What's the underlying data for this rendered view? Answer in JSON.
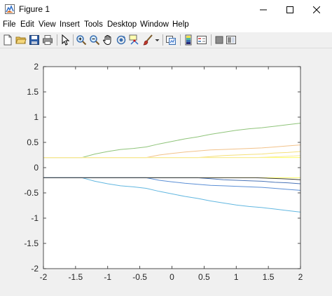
{
  "window": {
    "title": "Figure 1",
    "icon": "matlab-figure-icon",
    "controls": [
      "minimize-icon",
      "maximize-icon",
      "close-icon"
    ]
  },
  "menu": {
    "items": [
      "File",
      "Edit",
      "View",
      "Insert",
      "Tools",
      "Desktop",
      "Window",
      "Help"
    ]
  },
  "toolbar": {
    "tools": [
      "new-figure-icon",
      "open-file-icon",
      "save-icon",
      "print-icon",
      "pointer-icon",
      "zoom-in-icon",
      "zoom-out-icon",
      "pan-hand-icon",
      "rotate-3d-icon",
      "data-cursor-icon",
      "brush-icon",
      "brush-dropdown-icon",
      "link-plot-icon",
      "colorbar-icon",
      "legend-icon",
      "hide-plot-tools-icon",
      "show-plot-tools-icon"
    ]
  },
  "chart_data": {
    "type": "line",
    "title": "",
    "xlabel": "",
    "ylabel": "",
    "xlim": [
      -2,
      2
    ],
    "ylim": [
      -2,
      2
    ],
    "xticks": [
      "-2",
      "-1.5",
      "-1",
      "-0.5",
      "0",
      "0.5",
      "1",
      "1.5",
      "2"
    ],
    "yticks": [
      "-2",
      "-1.5",
      "-1",
      "-0.5",
      "0",
      "0.5",
      "1",
      "1.5",
      "2"
    ],
    "grid": false,
    "series": [
      {
        "color": "#ffff66",
        "x": [
          -2,
          2
        ],
        "y": [
          0.2,
          0.2
        ]
      },
      {
        "color": "#ffff66",
        "x": [
          -2,
          2
        ],
        "y": [
          -0.2,
          -0.2
        ]
      },
      {
        "color": "#8fc47a",
        "x": [
          -2,
          -1.4,
          -1.2,
          -1.0,
          -0.8,
          -0.6,
          -0.4,
          -0.2,
          0.0,
          0.2,
          0.4,
          0.6,
          0.8,
          1.0,
          1.2,
          1.4,
          1.6,
          1.8,
          2.0
        ],
        "y": [
          0.2,
          0.2,
          0.27,
          0.32,
          0.36,
          0.38,
          0.41,
          0.47,
          0.52,
          0.57,
          0.61,
          0.66,
          0.7,
          0.74,
          0.77,
          0.79,
          0.82,
          0.85,
          0.88
        ]
      },
      {
        "color": "#62b7e0",
        "x": [
          -2,
          -1.4,
          -1.2,
          -1.0,
          -0.8,
          -0.6,
          -0.4,
          -0.2,
          0.0,
          0.2,
          0.4,
          0.6,
          0.8,
          1.0,
          1.2,
          1.4,
          1.6,
          1.8,
          2.0
        ],
        "y": [
          -0.2,
          -0.2,
          -0.27,
          -0.32,
          -0.36,
          -0.38,
          -0.41,
          -0.47,
          -0.52,
          -0.57,
          -0.61,
          -0.66,
          -0.7,
          -0.74,
          -0.77,
          -0.79,
          -0.82,
          -0.85,
          -0.88
        ]
      },
      {
        "color": "#f2c28a",
        "x": [
          -2,
          -0.4,
          -0.2,
          0.0,
          0.2,
          0.4,
          0.6,
          0.8,
          1.0,
          1.2,
          1.4,
          1.6,
          1.8,
          2.0
        ],
        "y": [
          0.2,
          0.2,
          0.25,
          0.28,
          0.31,
          0.33,
          0.35,
          0.36,
          0.37,
          0.38,
          0.39,
          0.41,
          0.43,
          0.45
        ]
      },
      {
        "color": "#5b8fd6",
        "x": [
          -2,
          -0.4,
          -0.2,
          0.0,
          0.2,
          0.4,
          0.6,
          0.8,
          1.0,
          1.2,
          1.4,
          1.6,
          1.8,
          2.0
        ],
        "y": [
          -0.2,
          -0.2,
          -0.25,
          -0.28,
          -0.31,
          -0.33,
          -0.35,
          -0.36,
          -0.37,
          -0.38,
          -0.39,
          -0.41,
          -0.43,
          -0.45
        ]
      },
      {
        "color": "#f5e07a",
        "x": [
          -2,
          0.4,
          0.6,
          0.8,
          1.0,
          1.2,
          1.4,
          1.6,
          1.8,
          2.0
        ],
        "y": [
          0.2,
          0.2,
          0.22,
          0.24,
          0.25,
          0.26,
          0.27,
          0.29,
          0.3,
          0.32
        ]
      },
      {
        "color": "#4a74b8",
        "x": [
          -2,
          0.4,
          0.6,
          0.8,
          1.0,
          1.2,
          1.4,
          1.6,
          1.8,
          2.0
        ],
        "y": [
          -0.2,
          -0.2,
          -0.22,
          -0.24,
          -0.25,
          -0.26,
          -0.27,
          -0.29,
          -0.3,
          -0.32
        ]
      },
      {
        "color": "#f7ea9a",
        "x": [
          -2,
          1.3,
          1.5,
          1.7,
          1.9,
          2.0
        ],
        "y": [
          0.2,
          0.2,
          0.21,
          0.22,
          0.23,
          0.24
        ]
      },
      {
        "color": "#3b3b3b",
        "x": [
          -2,
          1.3,
          1.5,
          1.7,
          1.9,
          2.0
        ],
        "y": [
          -0.2,
          -0.2,
          -0.21,
          -0.22,
          -0.23,
          -0.24
        ]
      }
    ]
  }
}
